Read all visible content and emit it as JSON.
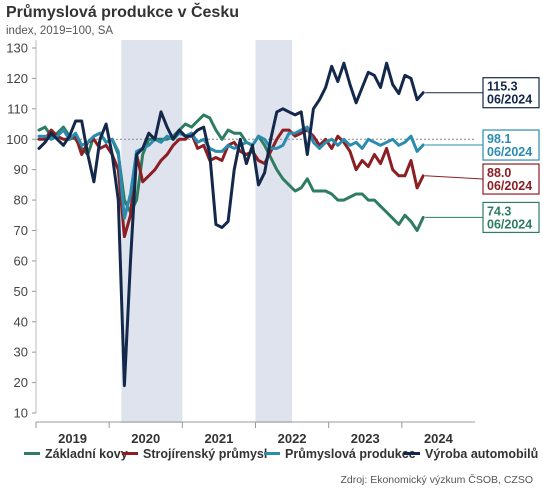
{
  "title": "Průmyslová produkce v Česku",
  "subtitle": "index, 2019=100, SA",
  "source": "Zdroj: Ekonomický výzkum ČSOB, CZSO",
  "chart_data": {
    "type": "line",
    "title": "Průmyslová produkce v Česku",
    "subtitle": "index, 2019=100, SA",
    "ylim": [
      10,
      130
    ],
    "yticks": [
      10,
      20,
      30,
      40,
      50,
      60,
      70,
      80,
      90,
      100,
      110,
      120,
      130
    ],
    "reference_line": 100,
    "year_labels": [
      "2019",
      "2020",
      "2021",
      "2022",
      "2023",
      "2024"
    ],
    "x_start": "2019-01",
    "x_end": "2024-06",
    "shaded_periods": [
      [
        "2020-03",
        "2020-12"
      ],
      [
        "2022-01",
        "2022-06"
      ]
    ],
    "legend_position": "bottom",
    "series": [
      {
        "name": "Základní kovy",
        "color": "#2e7d62",
        "end_label": [
          "74.3",
          "06/2024"
        ],
        "values": [
          103,
          104,
          101,
          102,
          104,
          101,
          100,
          97,
          95,
          101,
          102,
          99,
          100,
          95,
          80,
          76,
          80,
          95,
          100,
          100,
          100,
          100,
          101,
          103,
          105,
          104,
          106,
          108,
          107,
          103,
          100,
          103,
          102,
          102,
          99,
          98,
          101,
          98,
          94,
          90,
          87,
          85,
          83,
          84,
          87,
          83,
          83,
          83,
          82,
          80,
          80,
          81,
          82,
          82,
          80,
          80,
          78,
          76,
          74,
          72,
          75,
          73,
          70,
          74.3
        ]
      },
      {
        "name": "Strojírenský průmysl",
        "color": "#8c1f24",
        "end_label": [
          "88.0",
          "06/2024"
        ],
        "values": [
          100,
          100,
          103,
          101,
          100,
          100,
          101,
          95,
          99,
          100,
          97,
          98,
          95,
          90,
          68,
          75,
          95,
          86,
          88,
          90,
          93,
          95,
          98,
          100,
          100,
          102,
          97,
          98,
          93,
          94,
          93,
          98,
          99,
          96,
          95,
          96,
          93,
          92,
          96,
          100,
          103,
          103,
          101,
          102,
          103,
          101,
          98,
          100,
          97,
          101,
          99,
          96,
          90,
          93,
          91,
          95,
          92,
          97,
          90,
          88,
          88,
          93,
          84,
          88.0
        ]
      },
      {
        "name": "Průmyslová produkce",
        "color": "#2b8cb0",
        "end_label": [
          "98.1",
          "06/2024"
        ],
        "values": [
          101,
          101,
          100,
          101,
          103,
          100,
          102,
          98,
          99,
          101,
          102,
          99,
          100,
          96,
          74,
          82,
          96,
          97,
          98,
          100,
          99,
          101,
          100,
          102,
          101,
          102,
          99,
          100,
          97,
          96,
          96,
          98,
          97,
          98,
          99,
          98,
          101,
          100,
          97,
          97,
          98,
          102,
          102,
          103,
          104,
          99,
          97,
          99,
          100,
          98,
          100,
          98,
          99,
          97,
          100,
          99,
          98,
          99,
          100,
          98,
          99,
          101,
          96,
          98.1
        ]
      },
      {
        "name": "Výroba automobilů",
        "color": "#14284b",
        "end_label": [
          "115.3",
          "06/2024"
        ],
        "values": [
          97,
          99,
          102,
          100,
          98,
          101,
          106,
          106,
          95,
          86,
          100,
          105,
          95,
          80,
          19,
          60,
          95,
          97,
          102,
          100,
          109,
          104,
          100,
          103,
          101,
          101,
          103,
          104,
          95,
          72,
          71,
          73,
          90,
          100,
          92,
          98,
          85,
          89,
          100,
          109,
          110,
          109,
          108,
          109,
          95,
          110,
          113,
          117,
          124,
          119,
          125,
          118,
          112,
          117,
          122,
          121,
          117,
          125,
          118,
          115,
          121,
          120,
          113,
          115.3
        ]
      }
    ]
  }
}
